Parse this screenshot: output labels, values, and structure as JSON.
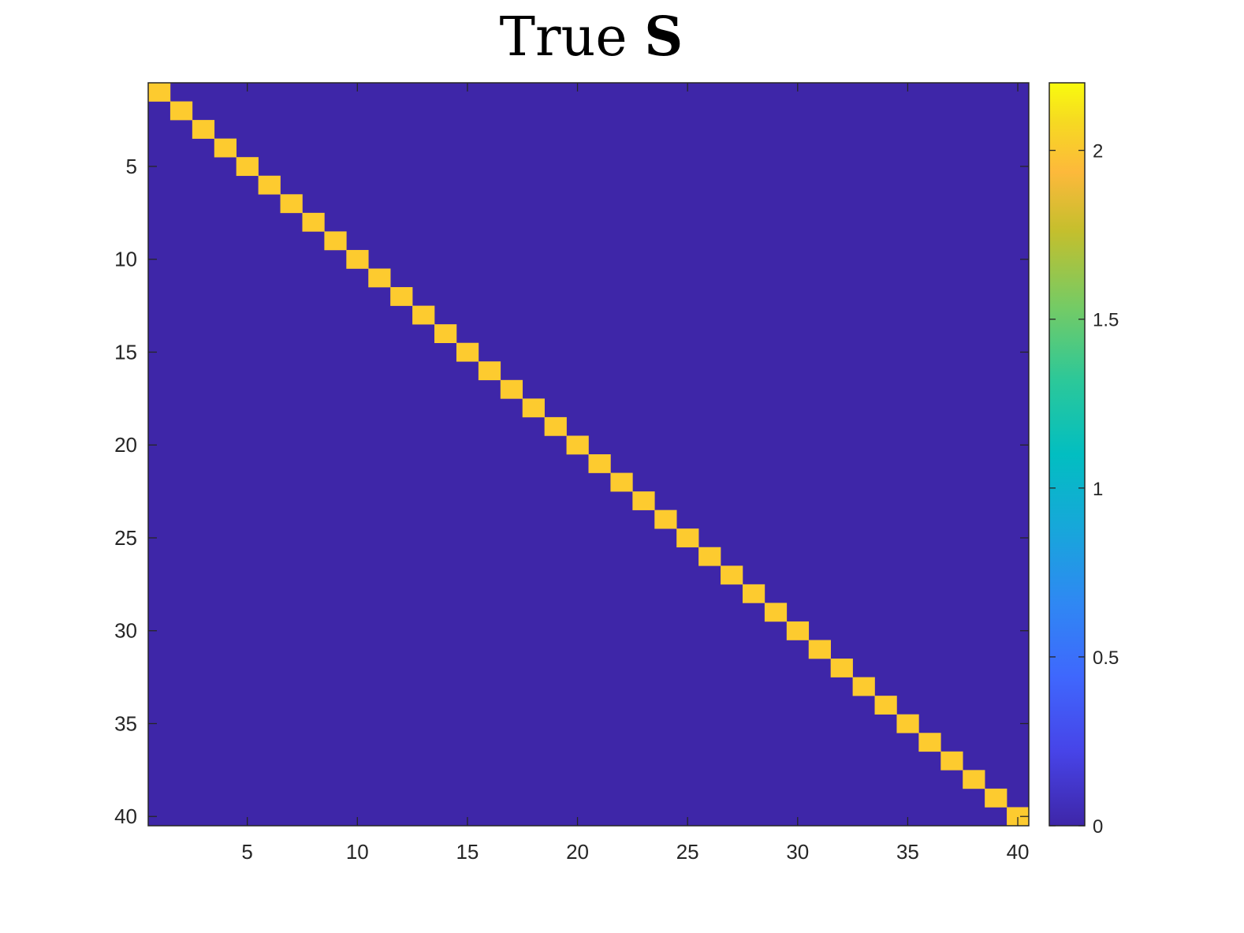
{
  "chart_data": {
    "type": "heatmap",
    "title": "True",
    "title_symbol": "S",
    "xlabel": "",
    "ylabel": "",
    "rows": 40,
    "cols": 40,
    "diagonal_value": 2,
    "off_diagonal_value": 0,
    "x_ticks": [
      5,
      10,
      15,
      20,
      25,
      30,
      35,
      40
    ],
    "y_ticks": [
      5,
      10,
      15,
      20,
      25,
      30,
      35,
      40
    ],
    "xlim": [
      0.5,
      40.5
    ],
    "ylim": [
      0.5,
      40.5
    ],
    "y_direction": "reversed",
    "colorbar": {
      "range": [
        0,
        2.2
      ],
      "ticks": [
        0,
        0.5,
        1,
        1.5,
        2
      ],
      "colormap": "parula",
      "location": "right"
    },
    "colors": {
      "low": "#3e26a8",
      "high": "#f9fb0e",
      "diagonal": "#fdcb2f",
      "axis": "#262626"
    }
  }
}
